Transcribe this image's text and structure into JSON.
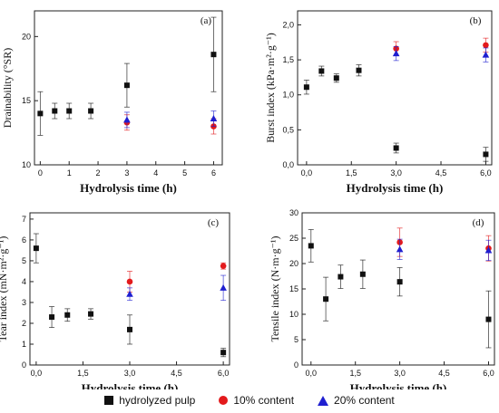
{
  "colors": {
    "hydrolyzed": "#111111",
    "c10": "#e31a1c",
    "c20": "#1f1fd0"
  },
  "legend": [
    {
      "label": "hydrolyzed pulp",
      "marker": "square"
    },
    {
      "label": "10% content",
      "marker": "circle"
    },
    {
      "label": "20% content",
      "marker": "triangle"
    }
  ],
  "chart_data": [
    {
      "type": "scatter",
      "panel": "(a)",
      "ylabel": "Drainability (°SR)",
      "xlabel": "Hydrolysis time (h)",
      "xlim": [
        -0.2,
        6.3
      ],
      "ylim": [
        10,
        22
      ],
      "xticks": [
        0,
        1,
        2,
        3,
        4,
        5,
        6
      ],
      "xtick_labels": [
        "0",
        "1",
        "2",
        "3",
        "4",
        "5",
        "6"
      ],
      "yticks": [
        10,
        15,
        20
      ],
      "ytick_labels": [
        "10",
        "15",
        "20"
      ],
      "series": [
        {
          "name": "hydrolyzed pulp",
          "x": [
            0,
            0.5,
            1,
            1.75,
            3,
            6
          ],
          "y": [
            14.0,
            14.2,
            14.2,
            14.2,
            16.2,
            18.6
          ],
          "err": [
            1.7,
            0.6,
            0.6,
            0.6,
            1.7,
            2.9
          ]
        },
        {
          "name": "10% content",
          "x": [
            3,
            6
          ],
          "y": [
            13.3,
            13.0
          ],
          "err": [
            0.6,
            0.6
          ]
        },
        {
          "name": "20% content",
          "x": [
            3,
            6
          ],
          "y": [
            13.5,
            13.6
          ],
          "err": [
            0.6,
            0.6
          ]
        }
      ]
    },
    {
      "type": "scatter",
      "panel": "(b)",
      "ylabel": "Burst index (kPa·m²·g⁻¹)",
      "xlabel": "Hydrolysis time (h)",
      "xlim": [
        -0.3,
        6.2
      ],
      "ylim": [
        0,
        2.2
      ],
      "xticks": [
        0,
        1.5,
        3,
        4.5,
        6
      ],
      "xtick_labels": [
        "0,0",
        "1,5",
        "3,0",
        "4,5",
        "6,0"
      ],
      "yticks": [
        0,
        0.5,
        1.0,
        1.5,
        2.0
      ],
      "ytick_labels": [
        "0,0",
        "0,5",
        "1,0",
        "1,5",
        "2,0"
      ],
      "series": [
        {
          "name": "hydrolyzed pulp",
          "x": [
            0,
            0.5,
            1,
            1.75,
            3,
            6
          ],
          "y": [
            1.11,
            1.34,
            1.24,
            1.35,
            0.24,
            0.15
          ],
          "err": [
            0.1,
            0.07,
            0.06,
            0.08,
            0.07,
            0.1
          ]
        },
        {
          "name": "10% content",
          "x": [
            3,
            6
          ],
          "y": [
            1.66,
            1.71
          ],
          "err": [
            0.1,
            0.1
          ]
        },
        {
          "name": "20% content",
          "x": [
            3,
            6
          ],
          "y": [
            1.59,
            1.57
          ],
          "err": [
            0.1,
            0.1
          ]
        }
      ]
    },
    {
      "type": "scatter",
      "panel": "(c)",
      "ylabel": "Tear index (mN·m²·g⁻¹)",
      "xlabel": "Hydrolysis time (h)",
      "xlim": [
        -0.2,
        6.2
      ],
      "ylim": [
        0,
        7.3
      ],
      "xticks": [
        0,
        1.5,
        3,
        4.5,
        6
      ],
      "xtick_labels": [
        "0,0",
        "1,5",
        "3,0",
        "4,5",
        "6,0"
      ],
      "yticks": [
        0,
        1,
        2,
        3,
        4,
        5,
        6,
        7
      ],
      "ytick_labels": [
        "0",
        "1",
        "2",
        "3",
        "4",
        "5",
        "6",
        "7"
      ],
      "series": [
        {
          "name": "hydrolyzed pulp",
          "x": [
            0,
            0.5,
            1,
            1.75,
            3,
            6
          ],
          "y": [
            5.6,
            2.3,
            2.4,
            2.45,
            1.7,
            0.6
          ],
          "err": [
            0.7,
            0.5,
            0.3,
            0.25,
            0.7,
            0.2
          ]
        },
        {
          "name": "10% content",
          "x": [
            3,
            6
          ],
          "y": [
            4.0,
            4.75
          ],
          "err": [
            0.5,
            0.15
          ]
        },
        {
          "name": "20% content",
          "x": [
            3,
            6
          ],
          "y": [
            3.4,
            3.7
          ],
          "err": [
            0.3,
            0.6
          ]
        }
      ]
    },
    {
      "type": "scatter",
      "panel": "(d)",
      "ylabel": "Tensile index (N·m·g⁻¹)",
      "xlabel": "Hydrolysis time (h)",
      "xlim": [
        -0.3,
        6.2
      ],
      "ylim": [
        0,
        30
      ],
      "xticks": [
        0,
        1.5,
        3,
        4.5,
        6
      ],
      "xtick_labels": [
        "0,0",
        "1,5",
        "3,0",
        "4,5",
        "6,0"
      ],
      "yticks": [
        0,
        5,
        10,
        15,
        20,
        25,
        30
      ],
      "ytick_labels": [
        "0",
        "5",
        "10",
        "15",
        "20",
        "25",
        "30"
      ],
      "series": [
        {
          "name": "hydrolyzed pulp",
          "x": [
            0,
            0.5,
            1,
            1.75,
            3,
            6
          ],
          "y": [
            23.5,
            13.0,
            17.4,
            17.9,
            16.4,
            9.0
          ],
          "err": [
            3.2,
            4.3,
            2.3,
            2.8,
            2.8,
            5.6
          ]
        },
        {
          "name": "10% content",
          "x": [
            3,
            6
          ],
          "y": [
            24.2,
            23.0
          ],
          "err": [
            2.8,
            2.5
          ]
        },
        {
          "name": "20% content",
          "x": [
            3,
            6
          ],
          "y": [
            22.8,
            22.6
          ],
          "err": [
            2.0,
            2.0
          ]
        }
      ]
    }
  ]
}
